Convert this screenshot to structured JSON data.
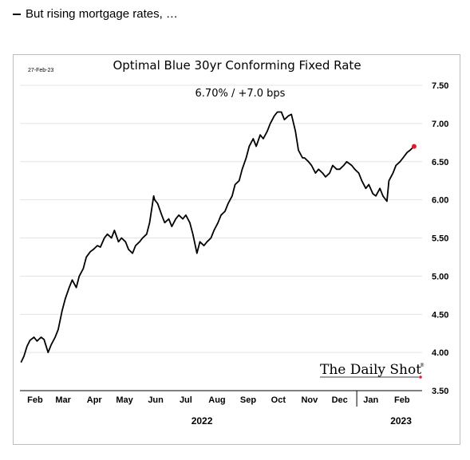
{
  "header": {
    "bullet_text": "But rising mortgage rates, …"
  },
  "chart_data": {
    "type": "line",
    "title": "Optimal Blue 30yr Conforming Fixed Rate",
    "subtitle": "6.70%  /  +7.0 bps",
    "date_stamp": "27-Feb-23",
    "logo": "The Daily Shot",
    "logo_mark": "®",
    "x_start": "2022-01-31",
    "x_end": "2023-03-07",
    "ylim": [
      3.5,
      7.5
    ],
    "y_ticks": [
      "3.50",
      "4.00",
      "4.50",
      "5.00",
      "5.50",
      "6.00",
      "6.50",
      "7.00",
      "7.50"
    ],
    "y_axis_position": "right",
    "grid": "horizontal",
    "x_month_labels": [
      {
        "label": "Feb",
        "date": "2022-02-15"
      },
      {
        "label": "Mar",
        "date": "2022-03-15"
      },
      {
        "label": "Apr",
        "date": "2022-04-15"
      },
      {
        "label": "May",
        "date": "2022-05-15"
      },
      {
        "label": "Jun",
        "date": "2022-06-15"
      },
      {
        "label": "Jul",
        "date": "2022-07-15"
      },
      {
        "label": "Aug",
        "date": "2022-08-15"
      },
      {
        "label": "Sep",
        "date": "2022-09-15"
      },
      {
        "label": "Oct",
        "date": "2022-10-15"
      },
      {
        "label": "Nov",
        "date": "2022-11-15"
      },
      {
        "label": "Dec",
        "date": "2022-12-15"
      },
      {
        "label": "Jan",
        "date": "2023-01-15"
      },
      {
        "label": "Feb",
        "date": "2023-02-15"
      }
    ],
    "x_year_labels": [
      {
        "label": "2022",
        "date": "2022-07-31"
      },
      {
        "label": "2023",
        "date": "2023-02-14"
      }
    ],
    "year_divider_date": "2023-01-01",
    "line_color": "#000000",
    "marker_color": "#e8192c",
    "series": [
      {
        "x": [
          "2022-02-01",
          "2022-02-04",
          "2022-02-07",
          "2022-02-10",
          "2022-02-14",
          "2022-02-17",
          "2022-02-21",
          "2022-02-24",
          "2022-02-28",
          "2022-03-03",
          "2022-03-07",
          "2022-03-10",
          "2022-03-14",
          "2022-03-17",
          "2022-03-21",
          "2022-03-24",
          "2022-03-28",
          "2022-03-31",
          "2022-04-04",
          "2022-04-07",
          "2022-04-11",
          "2022-04-14",
          "2022-04-18",
          "2022-04-21",
          "2022-04-25",
          "2022-04-28",
          "2022-05-02",
          "2022-05-05",
          "2022-05-09",
          "2022-05-12",
          "2022-05-16",
          "2022-05-19",
          "2022-05-23",
          "2022-05-26",
          "2022-05-30",
          "2022-06-02",
          "2022-06-06",
          "2022-06-09",
          "2022-06-13",
          "2022-06-14",
          "2022-06-17",
          "2022-06-21",
          "2022-06-24",
          "2022-06-28",
          "2022-07-01",
          "2022-07-05",
          "2022-07-08",
          "2022-07-12",
          "2022-07-15",
          "2022-07-19",
          "2022-07-22",
          "2022-07-26",
          "2022-07-29",
          "2022-08-02",
          "2022-08-05",
          "2022-08-09",
          "2022-08-12",
          "2022-08-16",
          "2022-08-19",
          "2022-08-23",
          "2022-08-26",
          "2022-08-30",
          "2022-09-02",
          "2022-09-06",
          "2022-09-09",
          "2022-09-13",
          "2022-09-16",
          "2022-09-20",
          "2022-09-23",
          "2022-09-27",
          "2022-09-30",
          "2022-10-04",
          "2022-10-07",
          "2022-10-11",
          "2022-10-14",
          "2022-10-18",
          "2022-10-21",
          "2022-10-25",
          "2022-10-28",
          "2022-11-01",
          "2022-11-04",
          "2022-11-08",
          "2022-11-10",
          "2022-11-14",
          "2022-11-17",
          "2022-11-21",
          "2022-11-24",
          "2022-11-28",
          "2022-12-01",
          "2022-12-05",
          "2022-12-08",
          "2022-12-12",
          "2022-12-15",
          "2022-12-19",
          "2022-12-22",
          "2022-12-27",
          "2022-12-30",
          "2023-01-03",
          "2023-01-06",
          "2023-01-10",
          "2023-01-13",
          "2023-01-17",
          "2023-01-20",
          "2023-01-24",
          "2023-01-27",
          "2023-01-31",
          "2023-02-02",
          "2023-02-06",
          "2023-02-09",
          "2023-02-13",
          "2023-02-16",
          "2023-02-20",
          "2023-02-23",
          "2023-02-27"
        ],
        "y": [
          3.87,
          3.95,
          4.08,
          4.16,
          4.2,
          4.15,
          4.2,
          4.17,
          4.0,
          4.1,
          4.2,
          4.3,
          4.55,
          4.7,
          4.85,
          4.95,
          4.85,
          5.0,
          5.1,
          5.25,
          5.32,
          5.35,
          5.4,
          5.38,
          5.5,
          5.55,
          5.5,
          5.6,
          5.45,
          5.5,
          5.45,
          5.35,
          5.3,
          5.4,
          5.45,
          5.5,
          5.55,
          5.7,
          6.05,
          6.0,
          5.95,
          5.8,
          5.7,
          5.75,
          5.65,
          5.75,
          5.8,
          5.75,
          5.8,
          5.7,
          5.55,
          5.3,
          5.45,
          5.4,
          5.45,
          5.5,
          5.6,
          5.7,
          5.8,
          5.85,
          5.95,
          6.05,
          6.2,
          6.25,
          6.4,
          6.55,
          6.7,
          6.8,
          6.7,
          6.85,
          6.8,
          6.9,
          7.0,
          7.1,
          7.15,
          7.15,
          7.05,
          7.1,
          7.12,
          6.9,
          6.65,
          6.55,
          6.55,
          6.5,
          6.45,
          6.35,
          6.4,
          6.35,
          6.3,
          6.35,
          6.45,
          6.4,
          6.4,
          6.45,
          6.5,
          6.45,
          6.4,
          6.35,
          6.25,
          6.15,
          6.2,
          6.08,
          6.05,
          6.15,
          6.05,
          5.98,
          6.25,
          6.35,
          6.45,
          6.5,
          6.55,
          6.62,
          6.65,
          6.7
        ]
      }
    ]
  }
}
